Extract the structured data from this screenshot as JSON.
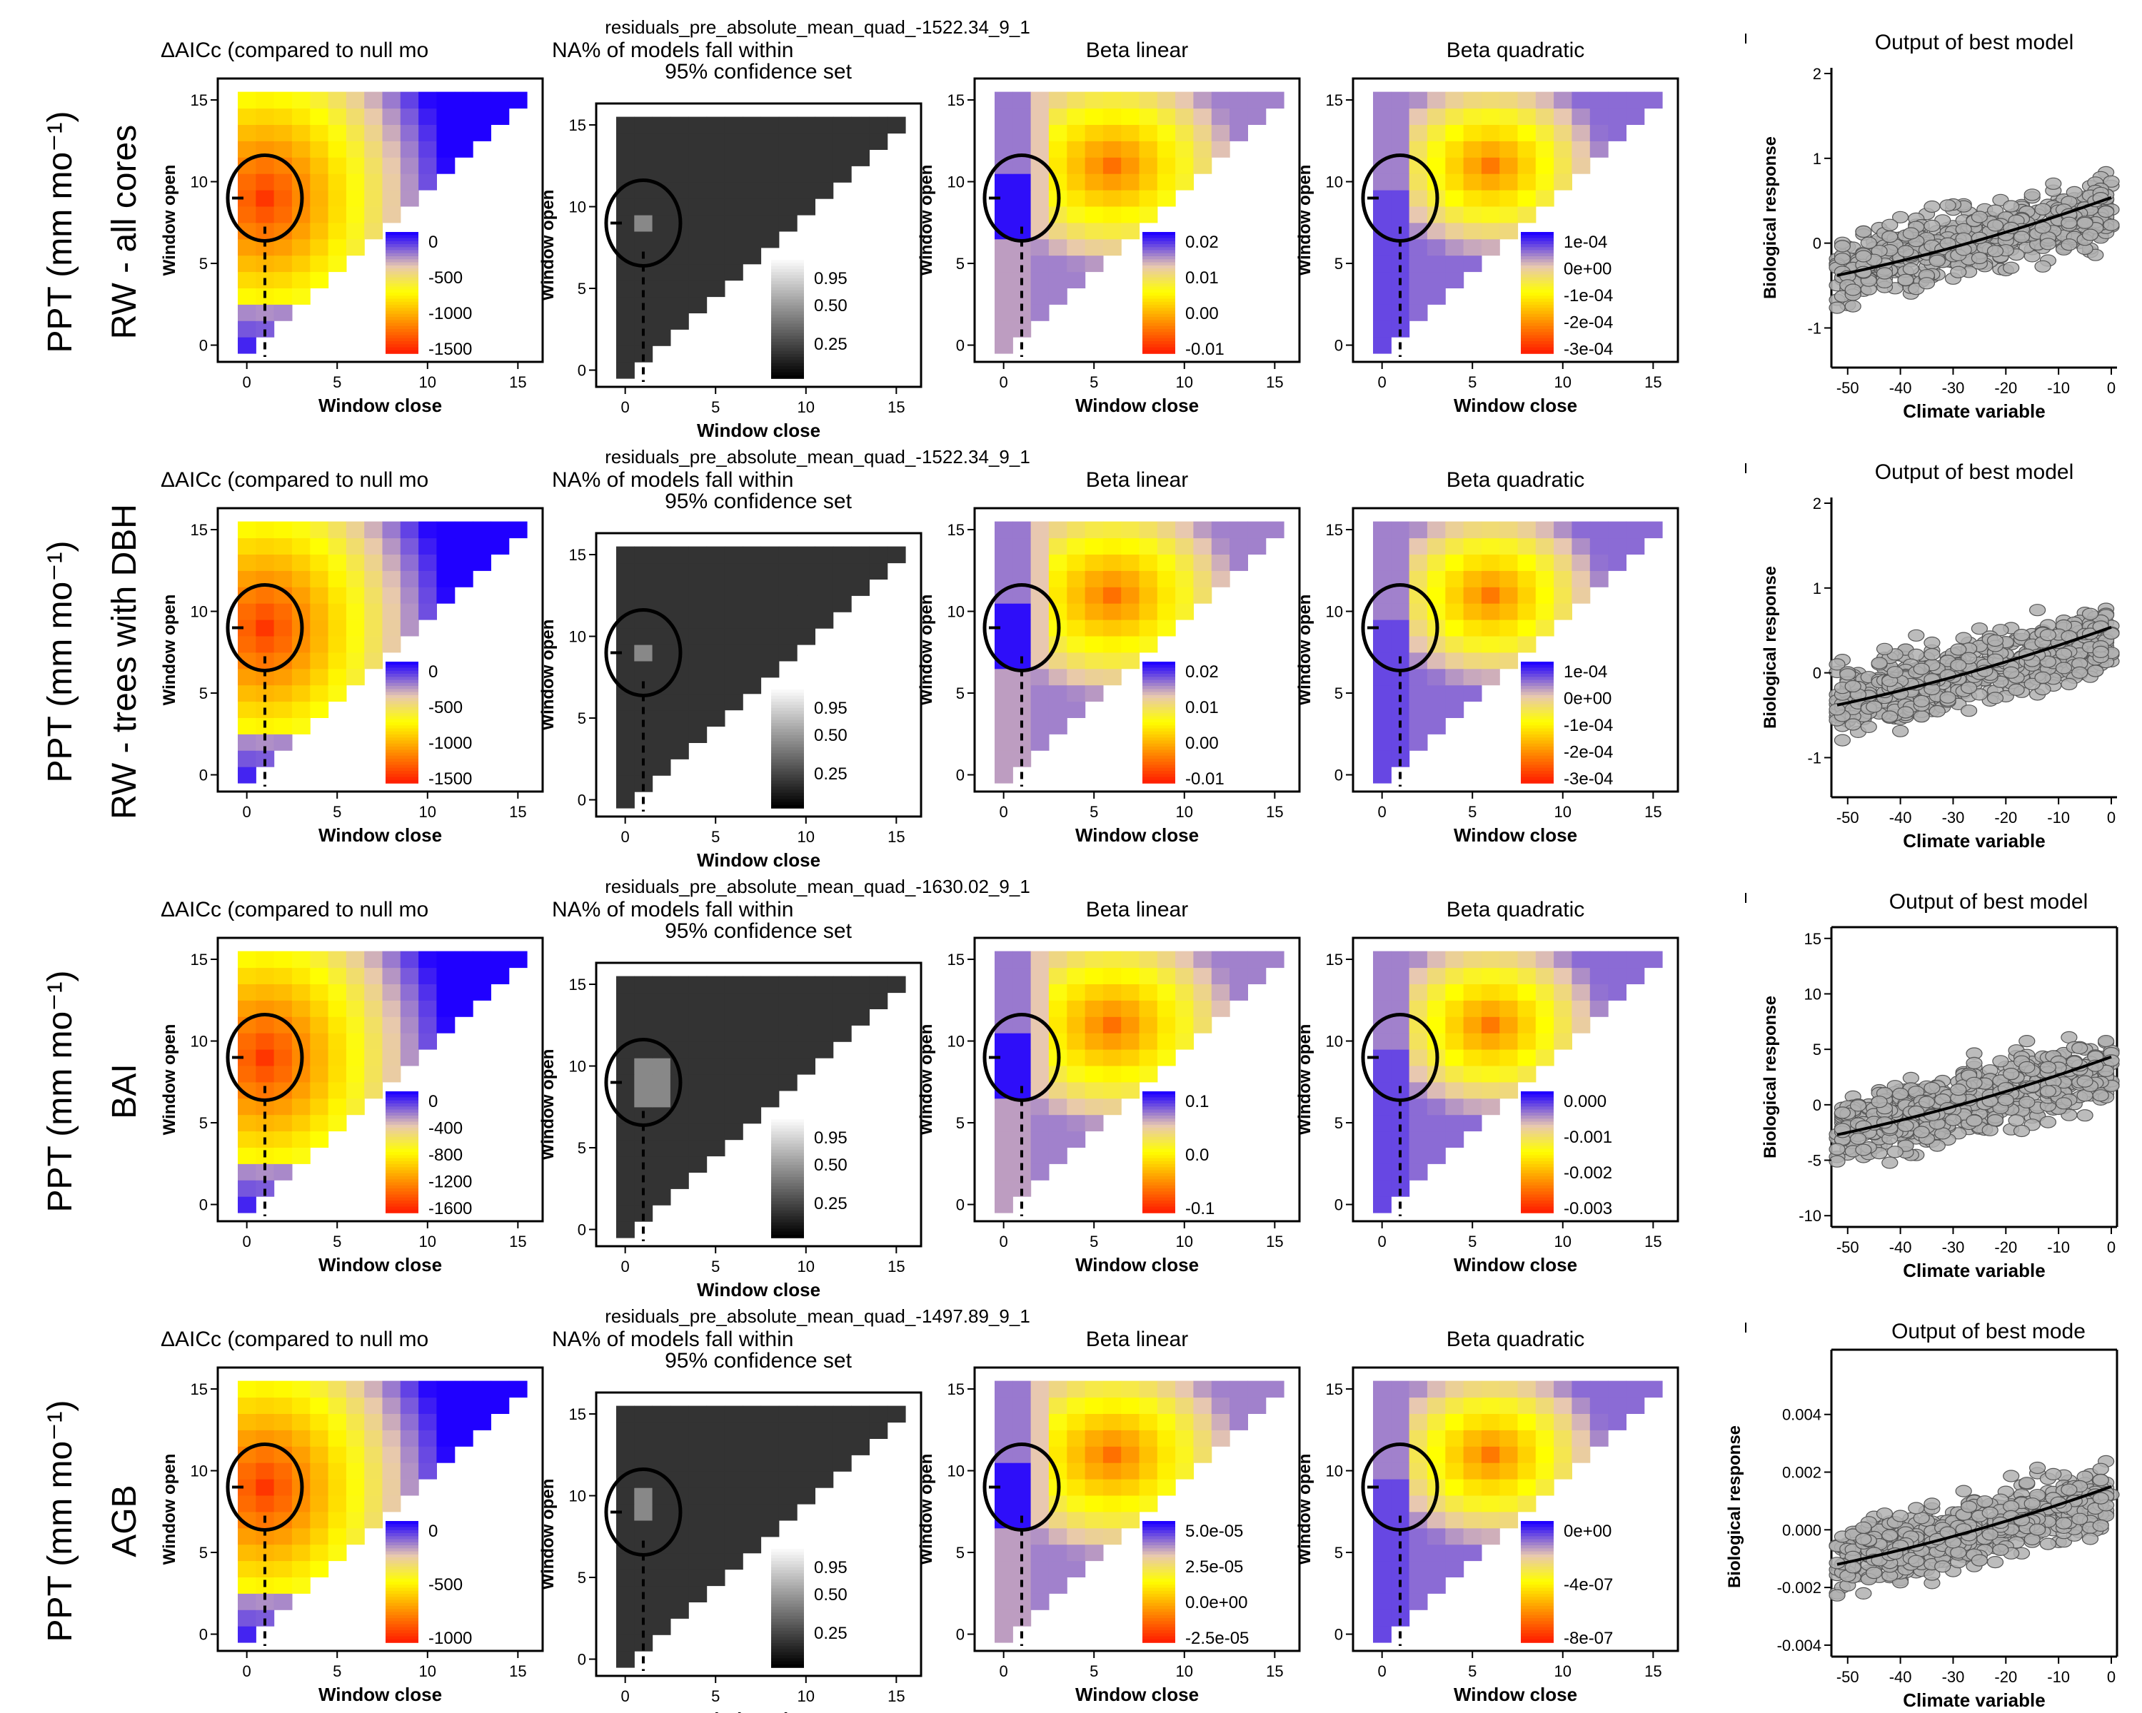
{
  "figure": {
    "rows": [
      {
        "group_label": "RW - all cores",
        "var_label": "PPT (mm mo⁻¹)",
        "best_label": "residuals_pre_absolute_mean_quad_-1522.34_9_1",
        "peak": 1,
        "median_ticks": [
          "0",
          "-500",
          "-1000",
          "-1500"
        ],
        "lin_ticks": [
          "0.02",
          "0.01",
          "0.00",
          "-0.01"
        ],
        "quad_ticks": [
          "1e-04",
          "0e+00",
          "-1e-04",
          "-2e-04",
          "-3e-04"
        ],
        "out_title": "Output of best model",
        "out_yticks": [
          "2",
          "1",
          "0",
          "-1"
        ],
        "out_ylim": [
          -1.4,
          2.0
        ],
        "out_yvals": [
          2,
          1,
          0,
          -1
        ]
      },
      {
        "group_label": "RW - trees with DBH",
        "var_label": "PPT (mm mo⁻¹)",
        "best_label": "residuals_pre_absolute_mean_quad_-1522.34_9_1",
        "peak": 1,
        "median_ticks": [
          "0",
          "-500",
          "-1000",
          "-1500"
        ],
        "lin_ticks": [
          "0.02",
          "0.01",
          "0.00",
          "-0.01"
        ],
        "quad_ticks": [
          "1e-04",
          "0e+00",
          "-1e-04",
          "-2e-04",
          "-3e-04"
        ],
        "out_title": "Output of best model",
        "out_yticks": [
          "2",
          "1",
          "0",
          "-1"
        ],
        "out_ylim": [
          -1.4,
          2.0
        ],
        "out_yvals": [
          2,
          1,
          0,
          -1
        ]
      },
      {
        "group_label": "BAI",
        "var_label": "PPT (mm mo⁻¹)",
        "best_label": "residuals_pre_absolute_mean_quad_-1630.02_9_1",
        "peak": 2,
        "median_ticks": [
          "0",
          "-400",
          "-800",
          "-1200",
          "-1600"
        ],
        "lin_ticks": [
          "0.1",
          "0.0",
          "-0.1"
        ],
        "quad_ticks": [
          "0.000",
          "-0.001",
          "-0.002",
          "-0.003"
        ],
        "out_title": "Output of best model",
        "out_yticks": [
          "15",
          "10",
          "5",
          "0",
          "-5",
          "-10"
        ],
        "out_ylim": [
          -10.5,
          15.5
        ],
        "out_yvals": [
          15,
          10,
          5,
          0,
          -5,
          -10
        ]
      },
      {
        "group_label": "AGB",
        "var_label": "PPT (mm mo⁻¹)",
        "best_label": "residuals_pre_absolute_mean_quad_-1497.89_9_1",
        "peak": 3,
        "median_ticks": [
          "0",
          "-500",
          "-1000"
        ],
        "lin_ticks": [
          "5.0e-05",
          "2.5e-05",
          "0.0e+00",
          "-2.5e-05"
        ],
        "quad_ticks": [
          "0e+00",
          "-4e-07",
          "-8e-07"
        ],
        "out_title": "Output of best mode",
        "out_yticks": [
          "0.004",
          "0.002",
          "0.000",
          "-0.002",
          "-0.004"
        ],
        "out_ylim": [
          -0.0042,
          0.0058
        ],
        "out_yvals": [
          0.004,
          0.002,
          0.0,
          -0.002,
          -0.004
        ]
      }
    ],
    "panel_titles": {
      "delta": "ΔAICc (compared to null mo",
      "pct_line1": "NA% of models fall within",
      "pct_line2": "95% confidence set",
      "linear": "Beta linear",
      "quad": "Beta quadratic"
    },
    "axis_labels": {
      "window_open": "Window open",
      "window_close": "Window close",
      "bio": "Biological response",
      "climate": "Climate variable"
    },
    "grid_ticks": [
      "0",
      "5",
      "10",
      "15"
    ],
    "pct_ticks": [
      "0.95",
      "0.50",
      "0.25"
    ],
    "out_xticks": [
      "-50",
      "-40",
      "-30",
      "-20",
      "-10",
      "0"
    ],
    "out_xvals": [
      -50,
      -40,
      -30,
      -20,
      -10,
      0
    ],
    "colors": {
      "scale_low": "#ff2000",
      "scale_mid": "#ffff00",
      "scale_pale": "#e8c8b0",
      "scale_high": "#2000ff",
      "na_cells": "#333333",
      "best_window": "#888888",
      "points": "#b0b0b0"
    }
  },
  "chart_data": [
    {
      "type": "heatmap",
      "title": "ΔAICc (compared to null mo",
      "xlabel": "Window close",
      "ylabel": "Window open",
      "x": [
        0,
        1,
        2,
        3,
        4,
        5,
        6,
        7,
        8,
        9,
        10,
        11,
        12,
        13,
        14,
        15
      ],
      "y": [
        0,
        1,
        2,
        3,
        4,
        5,
        6,
        7,
        8,
        9,
        10,
        11,
        12,
        13,
        14,
        15
      ],
      "best_window": {
        "open": 9,
        "close": 1
      },
      "legend_ticks": [
        "0",
        "-500",
        "-1000",
        "-1500"
      ]
    },
    {
      "type": "heatmap",
      "title": "Beta linear",
      "xlabel": "Window close",
      "ylabel": "Window open",
      "legend_ticks": [
        "0.02",
        "0.01",
        "0.00",
        "-0.01"
      ]
    },
    {
      "type": "heatmap",
      "title": "Beta quadratic",
      "xlabel": "Window close",
      "ylabel": "Window open",
      "legend_ticks": [
        "1e-04",
        "0e+00",
        "-1e-04",
        "-2e-04",
        "-3e-04"
      ]
    },
    {
      "type": "scatter",
      "title": "Output of best model",
      "xlabel": "Climate variable",
      "ylabel": "Biological response",
      "xlim": [
        -52,
        0
      ],
      "ylim": [
        -1.4,
        2.0
      ],
      "fit_line": {
        "x": [
          -52,
          -40,
          -30,
          -20,
          -10,
          0
        ],
        "y": [
          -0.35,
          -0.2,
          -0.03,
          0.15,
          0.35,
          0.58
        ]
      }
    }
  ]
}
